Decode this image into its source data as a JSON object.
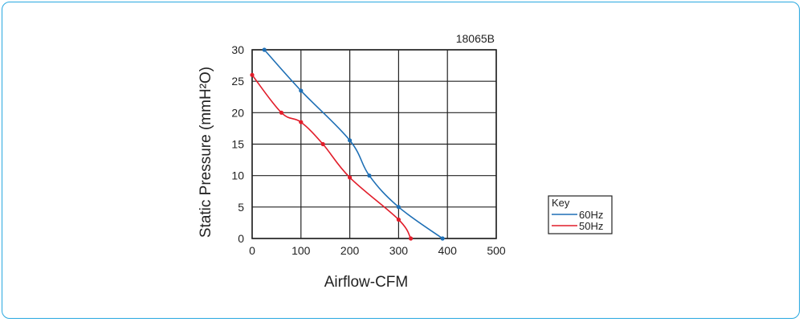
{
  "chart_data": {
    "type": "line",
    "model": "18065B",
    "xlabel": "Airflow-CFM",
    "ylabel": "Static Pressure (mmH²O)",
    "xlim": [
      0,
      500
    ],
    "ylim": [
      0,
      30
    ],
    "xticks": [
      0,
      100,
      200,
      300,
      400,
      500
    ],
    "yticks": [
      0,
      5,
      10,
      15,
      20,
      25,
      30
    ],
    "grid": true,
    "legend_title": "Key",
    "legend_position": "right",
    "series": [
      {
        "name": "60Hz",
        "color": "#1e6fb5",
        "x": [
          25,
          100,
          200,
          240,
          300,
          390
        ],
        "y": [
          30,
          23.5,
          15.6,
          10,
          5,
          0
        ]
      },
      {
        "name": "50Hz",
        "color": "#e11d2a",
        "x": [
          0,
          60,
          100,
          145,
          200,
          300,
          325
        ],
        "y": [
          26,
          20,
          18.5,
          15,
          9.7,
          3,
          0
        ]
      }
    ]
  }
}
